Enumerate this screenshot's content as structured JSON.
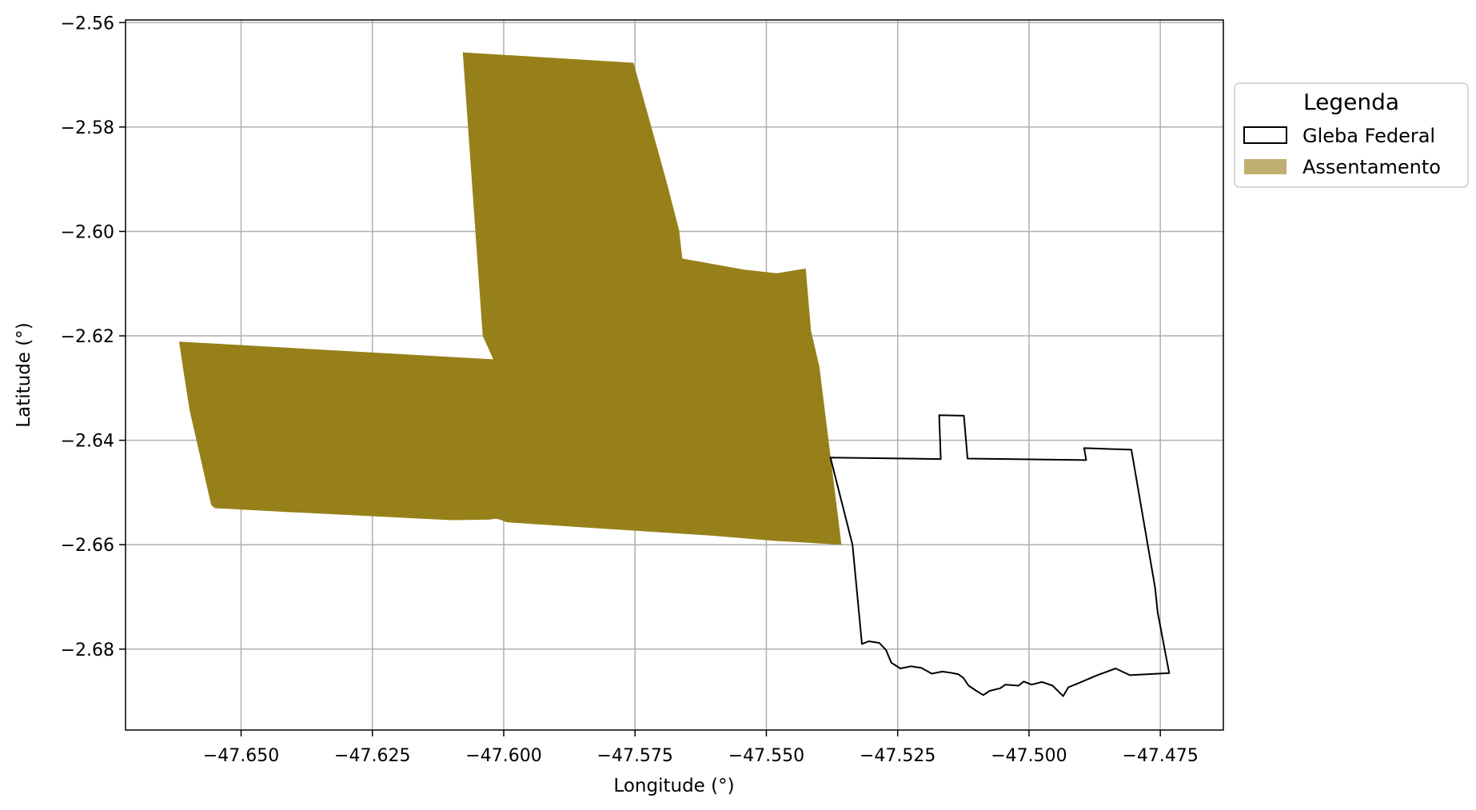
{
  "chart_data": {
    "type": "map",
    "xlabel": "Longitude (°)",
    "ylabel": "Latitude (°)",
    "xlim": [
      -47.672,
      -47.463
    ],
    "ylim": [
      -2.6955,
      -2.5595
    ],
    "xticks": [
      -47.65,
      -47.625,
      -47.6,
      -47.575,
      -47.55,
      -47.525,
      -47.5,
      -47.475
    ],
    "xtick_labels": [
      "−47.650",
      "−47.625",
      "−47.600",
      "−47.575",
      "−47.550",
      "−47.525",
      "−47.500",
      "−47.475"
    ],
    "yticks": [
      -2.56,
      -2.58,
      -2.6,
      -2.62,
      -2.64,
      -2.66,
      -2.68
    ],
    "ytick_labels": [
      "−2.56",
      "−2.58",
      "−2.60",
      "−2.62",
      "−2.64",
      "−2.66",
      "−2.68"
    ],
    "grid": true,
    "legend": {
      "title": "Legenda",
      "placement": "outside-right-top",
      "entries": [
        {
          "label": "Gleba Federal",
          "style": "outline",
          "edge_color": "#000000",
          "fill_color": "#ffffff"
        },
        {
          "label": "Assentamento",
          "style": "filled",
          "fill_color": "#c2b070"
        }
      ]
    },
    "layers": [
      {
        "name": "Assentamento",
        "fill_color": "#978019",
        "coordinates": [
          [
            -47.6078,
            -2.5657
          ],
          [
            -47.5753,
            -2.5677
          ],
          [
            -47.5691,
            -2.5901
          ],
          [
            -47.5666,
            -2.5998
          ],
          [
            -47.566,
            -2.6052
          ],
          [
            -47.5543,
            -2.6073
          ],
          [
            -47.548,
            -2.608
          ],
          [
            -47.5425,
            -2.6071
          ],
          [
            -47.5415,
            -2.619
          ],
          [
            -47.5399,
            -2.6259
          ],
          [
            -47.5357,
            -2.66
          ],
          [
            -47.548,
            -2.6593
          ],
          [
            -47.56,
            -2.6583
          ],
          [
            -47.58,
            -2.657
          ],
          [
            -47.5995,
            -2.6557
          ],
          [
            -47.6007,
            -2.6552
          ],
          [
            -47.6015,
            -2.655
          ],
          [
            -47.6028,
            -2.6552
          ],
          [
            -47.61,
            -2.6553
          ],
          [
            -47.64,
            -2.6538
          ],
          [
            -47.655,
            -2.653
          ],
          [
            -47.6557,
            -2.6524
          ],
          [
            -47.6598,
            -2.6342
          ],
          [
            -47.661,
            -2.6266
          ],
          [
            -47.6618,
            -2.6211
          ],
          [
            -47.602,
            -2.6245
          ],
          [
            -47.604,
            -2.62
          ],
          [
            -47.6078,
            -2.5657
          ]
        ]
      },
      {
        "name": "Gleba Federal",
        "edge_color": "#000000",
        "coordinates": [
          [
            -47.5378,
            -2.6433
          ],
          [
            -47.5168,
            -2.6436
          ],
          [
            -47.5171,
            -2.6352
          ],
          [
            -47.5124,
            -2.6353
          ],
          [
            -47.5117,
            -2.6435
          ],
          [
            -47.4891,
            -2.6438
          ],
          [
            -47.4895,
            -2.6415
          ],
          [
            -47.4805,
            -2.6418
          ],
          [
            -47.476,
            -2.6682
          ],
          [
            -47.4755,
            -2.673
          ],
          [
            -47.4733,
            -2.6846
          ],
          [
            -47.4808,
            -2.685
          ],
          [
            -47.4835,
            -2.6837
          ],
          [
            -47.487,
            -2.685
          ],
          [
            -47.4905,
            -2.6865
          ],
          [
            -47.4925,
            -2.6873
          ],
          [
            -47.4935,
            -2.689
          ],
          [
            -47.4955,
            -2.687
          ],
          [
            -47.4975,
            -2.6863
          ],
          [
            -47.4995,
            -2.6868
          ],
          [
            -47.501,
            -2.6862
          ],
          [
            -47.502,
            -2.687
          ],
          [
            -47.5045,
            -2.6868
          ],
          [
            -47.5055,
            -2.6875
          ],
          [
            -47.5075,
            -2.688
          ],
          [
            -47.5087,
            -2.6888
          ],
          [
            -47.51,
            -2.688
          ],
          [
            -47.5115,
            -2.687
          ],
          [
            -47.5125,
            -2.6855
          ],
          [
            -47.5135,
            -2.6848
          ],
          [
            -47.515,
            -2.6845
          ],
          [
            -47.5165,
            -2.6843
          ],
          [
            -47.5185,
            -2.6847
          ],
          [
            -47.5205,
            -2.6836
          ],
          [
            -47.5225,
            -2.6833
          ],
          [
            -47.5245,
            -2.6837
          ],
          [
            -47.5262,
            -2.6826
          ],
          [
            -47.5272,
            -2.6802
          ],
          [
            -47.5285,
            -2.6788
          ],
          [
            -47.5305,
            -2.6785
          ],
          [
            -47.5318,
            -2.679
          ],
          [
            -47.5336,
            -2.66
          ],
          [
            -47.5378,
            -2.6433
          ]
        ]
      }
    ]
  }
}
